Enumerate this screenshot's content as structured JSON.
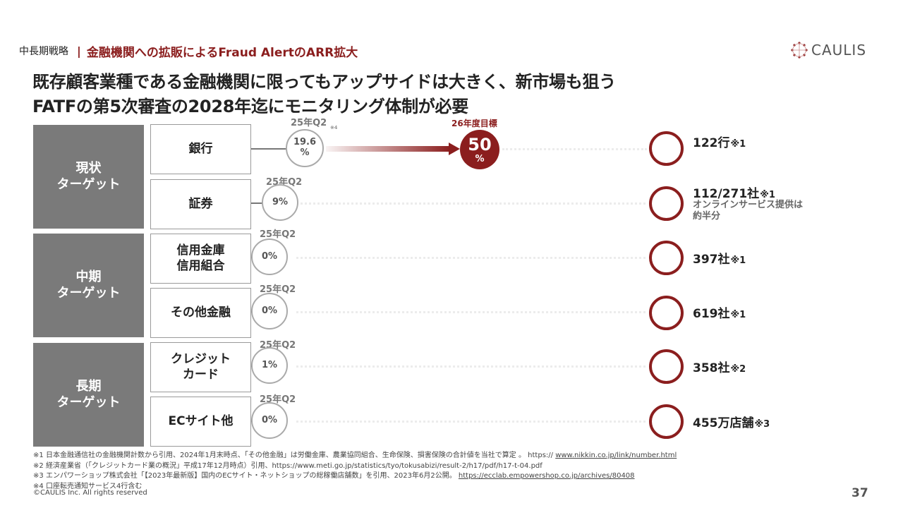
{
  "header": {
    "section": "中長期戦略",
    "separator": "|",
    "topic": "金融機関への拡販によるFraud AlertのARR拡大",
    "logo_text": "CAULIS",
    "logo_color": "#8b1e1e"
  },
  "headline": {
    "line1": "既存顧客業種である金融機関に限ってもアップサイドは大きく、新市場も狙う",
    "line2": "FATFの第5次審査の2028年迄にモニタリング体制が必要"
  },
  "groups": [
    {
      "label": "現状\nターゲット"
    },
    {
      "label": "中期\nターゲット"
    },
    {
      "label": "長期\nターゲット"
    }
  ],
  "categories": [
    {
      "label": "銀行",
      "period": "25年Q2",
      "share": "19.6\n%",
      "count": "122行",
      "count_note": "※1"
    },
    {
      "label": "証券",
      "period": "25年Q2",
      "share": "9%",
      "count": "112/271社",
      "count_note": "※1",
      "sub_note": "オンラインサービス提供は\n約半分"
    },
    {
      "label": "信用金庫\n信用組合",
      "period": "25年Q2",
      "share": "0%",
      "count": "397社",
      "count_note": "※1"
    },
    {
      "label": "その他金融",
      "period": "25年Q2",
      "share": "0%",
      "count": "619社",
      "count_note": "※1"
    },
    {
      "label": "クレジット\nカード",
      "period": "25年Q2",
      "share": "1%",
      "count": "358社",
      "count_note": "※2"
    },
    {
      "label": "ECサイト他",
      "period": "25年Q2",
      "share": "0%",
      "count": "455万店舗",
      "count_note": "※3"
    }
  ],
  "bank_marker_note": "※4",
  "target": {
    "label": "26年度目標",
    "value": "50",
    "unit": "%"
  },
  "colors": {
    "accent": "#8b1e1e",
    "group_bg": "#7a7a7a"
  },
  "footnotes": [
    {
      "label": "※1",
      "text": "日本金融通信社の金融機関計数から引用、2024年1月末時点、「その他金融」は労働金庫、農業協同組合、生命保険、損害保険の合計値を当社で算定 。 https:// ",
      "link": "www.nikkin.co.jp/link/number.html"
    },
    {
      "label": "※2",
      "text": "経済産業省（「クレジットカード業の概況」平成17年12月時点）引用、https://www.meti.go.jp/statistics/tyo/tokusabizi/result-2/h17/pdf/h17-t-04.pdf",
      "link": ""
    },
    {
      "label": "※3",
      "text": "エンパワーショップ株式会社「【2023年最新版】国内のECサイト・ネットショップの総稼働店舗数」を引用、2023年6月2公開。 ",
      "link": "https://ecclab.empowershop.co.jp/archives/80408"
    },
    {
      "label": "※4",
      "text": "口座転売通知サービス4行含む",
      "link": ""
    }
  ],
  "copyright": "©CAULIS Inc. All rights reserved",
  "page_number": "37"
}
